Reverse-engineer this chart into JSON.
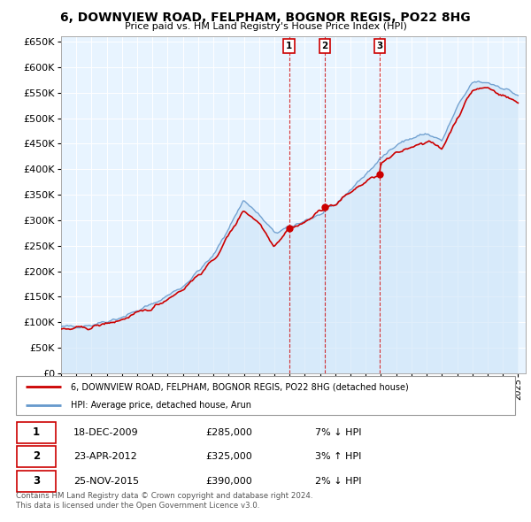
{
  "title": "6, DOWNVIEW ROAD, FELPHAM, BOGNOR REGIS, PO22 8HG",
  "subtitle": "Price paid vs. HM Land Registry's House Price Index (HPI)",
  "ylim": [
    0,
    660000
  ],
  "yticks": [
    0,
    50000,
    100000,
    150000,
    200000,
    250000,
    300000,
    350000,
    400000,
    450000,
    500000,
    550000,
    600000,
    650000
  ],
  "xlim_start": 1995.0,
  "xlim_end": 2025.5,
  "property_color": "#cc0000",
  "hpi_color": "#6699cc",
  "hpi_fill_color": "#ddeeff",
  "bg_color": "#e8f4ff",
  "transactions": [
    {
      "num": 1,
      "date": "18-DEC-2009",
      "price": 285000,
      "pct": "7%",
      "dir": "↓",
      "year": 2009.96
    },
    {
      "num": 2,
      "date": "23-APR-2012",
      "price": 325000,
      "pct": "3%",
      "dir": "↑",
      "year": 2012.31
    },
    {
      "num": 3,
      "date": "25-NOV-2015",
      "price": 390000,
      "pct": "2%",
      "dir": "↓",
      "year": 2015.9
    }
  ],
  "legend_property_label": "6, DOWNVIEW ROAD, FELPHAM, BOGNOR REGIS, PO22 8HG (detached house)",
  "legend_hpi_label": "HPI: Average price, detached house, Arun",
  "footnote": "Contains HM Land Registry data © Crown copyright and database right 2024.\nThis data is licensed under the Open Government Licence v3.0.",
  "xtick_years": [
    1995,
    1996,
    1997,
    1998,
    1999,
    2000,
    2001,
    2002,
    2003,
    2004,
    2005,
    2006,
    2007,
    2008,
    2009,
    2010,
    2011,
    2012,
    2013,
    2014,
    2015,
    2016,
    2017,
    2018,
    2019,
    2020,
    2021,
    2022,
    2023,
    2024,
    2025
  ]
}
